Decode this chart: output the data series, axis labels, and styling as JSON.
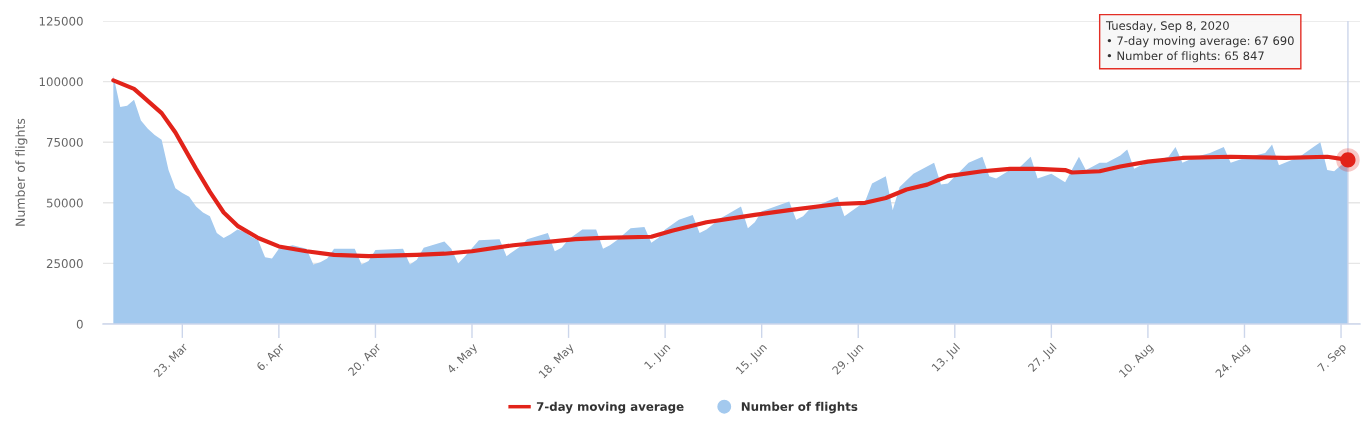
{
  "chart_data": {
    "type": "area",
    "ylabel": "Number of flights",
    "series": [
      {
        "name": "7-day moving average",
        "type": "line",
        "color": "#e2231a",
        "x": [
          "2020-03-13",
          "2020-03-16",
          "2020-03-17",
          "2020-03-20",
          "2020-03-22",
          "2020-03-23",
          "2020-03-25",
          "2020-03-27",
          "2020-03-29",
          "2020-03-31",
          "2020-04-03",
          "2020-04-06",
          "2020-04-10",
          "2020-04-14",
          "2020-04-19",
          "2020-04-26",
          "2020-04-30",
          "2020-05-04",
          "2020-05-10",
          "2020-05-19",
          "2020-05-23",
          "2020-05-30",
          "2020-06-02",
          "2020-06-07",
          "2020-06-14",
          "2020-06-19",
          "2020-06-26",
          "2020-06-30",
          "2020-07-03",
          "2020-07-06",
          "2020-07-09",
          "2020-07-12",
          "2020-07-17",
          "2020-07-21",
          "2020-07-25",
          "2020-07-29",
          "2020-07-30",
          "2020-08-03",
          "2020-08-06",
          "2020-08-10",
          "2020-08-15",
          "2020-08-22",
          "2020-08-30",
          "2020-09-05",
          "2020-09-08"
        ],
        "values": [
          100500,
          97000,
          94500,
          87000,
          79000,
          74000,
          64000,
          54500,
          46000,
          40500,
          35500,
          32000,
          30000,
          28500,
          28000,
          28500,
          29000,
          30000,
          32500,
          35000,
          35500,
          36000,
          38500,
          42000,
          45000,
          47000,
          49500,
          50000,
          52000,
          55500,
          57500,
          61000,
          63000,
          64000,
          64000,
          63500,
          62500,
          63000,
          65000,
          67000,
          68500,
          69000,
          68500,
          69000,
          67690
        ]
      },
      {
        "name": "Number of flights",
        "color": "#a3c9ee",
        "x": [
          "2020-03-13",
          "2020-03-14",
          "2020-03-15",
          "2020-03-16",
          "2020-03-17",
          "2020-03-18",
          "2020-03-19",
          "2020-03-20",
          "2020-03-21",
          "2020-03-22",
          "2020-03-23",
          "2020-03-24",
          "2020-03-25",
          "2020-03-26",
          "2020-03-27",
          "2020-03-28",
          "2020-03-29",
          "2020-03-30",
          "2020-03-31",
          "2020-04-01",
          "2020-04-02",
          "2020-04-03",
          "2020-04-04",
          "2020-04-05",
          "2020-04-06",
          "2020-04-08",
          "2020-04-10",
          "2020-04-11",
          "2020-04-12",
          "2020-04-13",
          "2020-04-14",
          "2020-04-17",
          "2020-04-18",
          "2020-04-19",
          "2020-04-20",
          "2020-04-24",
          "2020-04-25",
          "2020-04-26",
          "2020-04-27",
          "2020-04-30",
          "2020-05-01",
          "2020-05-02",
          "2020-05-03",
          "2020-05-05",
          "2020-05-08",
          "2020-05-09",
          "2020-05-10",
          "2020-05-11",
          "2020-05-12",
          "2020-05-15",
          "2020-05-16",
          "2020-05-17",
          "2020-05-18",
          "2020-05-20",
          "2020-05-22",
          "2020-05-23",
          "2020-05-24",
          "2020-05-25",
          "2020-05-27",
          "2020-05-29",
          "2020-05-30",
          "2020-05-31",
          "2020-06-01",
          "2020-06-03",
          "2020-06-05",
          "2020-06-06",
          "2020-06-07",
          "2020-06-09",
          "2020-06-12",
          "2020-06-13",
          "2020-06-14",
          "2020-06-15",
          "2020-06-19",
          "2020-06-20",
          "2020-06-21",
          "2020-06-22",
          "2020-06-26",
          "2020-06-27",
          "2020-06-28",
          "2020-06-30",
          "2020-07-01",
          "2020-07-03",
          "2020-07-04",
          "2020-07-05",
          "2020-07-07",
          "2020-07-10",
          "2020-07-11",
          "2020-07-12",
          "2020-07-15",
          "2020-07-17",
          "2020-07-18",
          "2020-07-19",
          "2020-07-21",
          "2020-07-22",
          "2020-07-24",
          "2020-07-25",
          "2020-07-27",
          "2020-07-29",
          "2020-07-31",
          "2020-08-01",
          "2020-08-02",
          "2020-08-03",
          "2020-08-04",
          "2020-08-06",
          "2020-08-07",
          "2020-08-08",
          "2020-08-09",
          "2020-08-10",
          "2020-08-13",
          "2020-08-14",
          "2020-08-15",
          "2020-08-17",
          "2020-08-19",
          "2020-08-21",
          "2020-08-22",
          "2020-08-24",
          "2020-08-27",
          "2020-08-28",
          "2020-08-29",
          "2020-09-01",
          "2020-09-03",
          "2020-09-04",
          "2020-09-05",
          "2020-09-06",
          "2020-09-07",
          "2020-09-08"
        ],
        "values": [
          102500,
          89500,
          90000,
          92500,
          84000,
          80500,
          78000,
          76000,
          63500,
          56000,
          54000,
          52500,
          48500,
          46000,
          44500,
          37500,
          35500,
          37000,
          39000,
          38000,
          36000,
          34500,
          27500,
          27000,
          31000,
          32500,
          31000,
          24500,
          25500,
          27000,
          31000,
          31000,
          24500,
          26000,
          30500,
          31000,
          24500,
          26500,
          31500,
          34000,
          31000,
          25000,
          28000,
          34500,
          35000,
          28000,
          30000,
          32000,
          35000,
          37500,
          30000,
          31500,
          35000,
          39000,
          39000,
          31000,
          32500,
          34500,
          39500,
          40000,
          33500,
          35500,
          39000,
          43000,
          45000,
          37500,
          39000,
          43500,
          48500,
          39500,
          42000,
          46500,
          50500,
          43000,
          44500,
          47500,
          52500,
          44500,
          46500,
          50500,
          58000,
          61000,
          47000,
          56500,
          62000,
          66500,
          57500,
          58000,
          66500,
          69000,
          61000,
          60000,
          63500,
          63500,
          69000,
          60000,
          62000,
          58500,
          69000,
          63500,
          65000,
          66500,
          66500,
          69500,
          72000,
          64000,
          65500,
          66500,
          69000,
          73000,
          66500,
          69000,
          70500,
          73000,
          66500,
          68500,
          70500,
          74000,
          65500,
          69000,
          73000,
          75000,
          63500,
          63000,
          65500,
          65847
        ]
      },
      {
        "type": "scatter",
        "color": "#e2231a",
        "x": [
          "2020-09-08"
        ],
        "values": [
          67690
        ]
      }
    ],
    "xlim": [
      "2020-03-11T12:00",
      "2020-09-09T18:00"
    ],
    "xticks": [
      {
        "value": "2020-03-23",
        "label": "23. Mar"
      },
      {
        "value": "2020-04-06",
        "label": "6. Apr"
      },
      {
        "value": "2020-04-20",
        "label": "20. Apr"
      },
      {
        "value": "2020-05-04",
        "label": "4. May"
      },
      {
        "value": "2020-05-18",
        "label": "18. May"
      },
      {
        "value": "2020-06-01",
        "label": "1. Jun"
      },
      {
        "value": "2020-06-15",
        "label": "15. Jun"
      },
      {
        "value": "2020-06-29",
        "label": "29. Jun"
      },
      {
        "value": "2020-07-13",
        "label": "13. Jul"
      },
      {
        "value": "2020-07-27",
        "label": "27. Jul"
      },
      {
        "value": "2020-08-10",
        "label": "10. Aug"
      },
      {
        "value": "2020-08-24",
        "label": "24. Aug"
      },
      {
        "value": "2020-09-07",
        "label": "7. Sep"
      }
    ],
    "ylim": [
      0,
      125000
    ],
    "yticks": [
      0,
      25000,
      50000,
      75000,
      100000,
      125000
    ],
    "grid": "y",
    "legend": "bottom",
    "ref_lines": [
      {
        "axis": "x",
        "value": "2020-09-08",
        "color": "#ccd6eb"
      }
    ],
    "annotations": [
      "Tuesday, Sep 8, 2020\n• 7-day moving average: 67 690\n• Number of flights: 65 847"
    ]
  }
}
